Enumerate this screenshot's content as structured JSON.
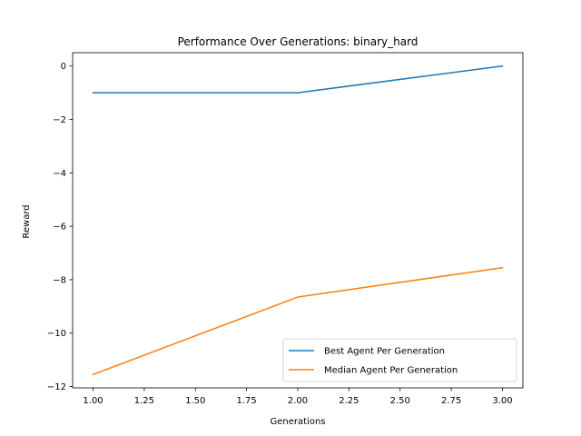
{
  "chart_data": {
    "type": "line",
    "title": "Performance Over Generations: binary_hard",
    "xlabel": "Generations",
    "ylabel": "Reward",
    "x": [
      1.0,
      2.0,
      3.0
    ],
    "xlim": [
      0.9,
      3.1
    ],
    "ylim": [
      -12.05,
      0.5
    ],
    "xticks": [
      1.0,
      1.25,
      1.5,
      1.75,
      2.0,
      2.25,
      2.5,
      2.75,
      3.0
    ],
    "xtick_labels": [
      "1.00",
      "1.25",
      "1.50",
      "1.75",
      "2.00",
      "2.25",
      "2.50",
      "2.75",
      "3.00"
    ],
    "yticks": [
      0,
      -2,
      -4,
      -6,
      -8,
      -10,
      -12
    ],
    "ytick_labels": [
      "0",
      "−2",
      "−4",
      "−6",
      "−8",
      "−10",
      "−12"
    ],
    "series": [
      {
        "name": "Best Agent Per Generation",
        "color": "#1f77b4",
        "values": [
          -1.0,
          -1.0,
          0.0
        ]
      },
      {
        "name": "Median Agent Per Generation",
        "color": "#ff7f0e",
        "values": [
          -11.55,
          -8.65,
          -7.55
        ]
      }
    ],
    "legend_position": "lower-right",
    "grid": false
  }
}
